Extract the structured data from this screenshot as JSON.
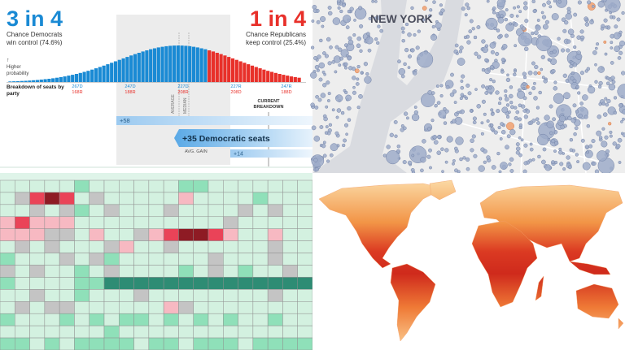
{
  "chart_data": [
    {
      "type": "bar",
      "headline_left": "3 in 4",
      "caption_left": [
        "Chance Democrats",
        "win control (74.6%)"
      ],
      "headline_right": "1 in 4",
      "caption_right": [
        "Chance Republicans",
        "keep control (25.4%)"
      ],
      "y_label": [
        "↑",
        "Higher",
        "probability"
      ],
      "x_label": [
        "Breakdown of seats by",
        "party"
      ],
      "seat_labels": [
        [
          "267D",
          "168R"
        ],
        [
          "247D",
          "188R"
        ],
        [
          "227D",
          "208R"
        ],
        [
          "227R",
          "208D"
        ],
        [
          "247R",
          "188D"
        ]
      ],
      "markers": [
        "AVERAGE",
        "MEDIAN",
        [
          "CURRENT",
          "BREAKDOWN"
        ]
      ],
      "gains": [
        "+58",
        "+35 Democratic seats",
        "AVG. GAIN",
        "+14"
      ],
      "ylim": [
        0,
        4.5
      ],
      "series": [
        {
          "color": "#1a8ad4",
          "values": [
            0.07,
            0.09,
            0.11,
            0.13,
            0.15,
            0.18,
            0.22,
            0.25,
            0.3,
            0.35,
            0.4,
            0.46,
            0.53,
            0.61,
            0.69,
            0.79,
            0.89,
            1.0,
            1.12,
            1.25,
            1.38,
            1.53,
            1.69,
            1.85,
            2.02,
            2.19,
            2.37,
            2.55,
            2.73,
            2.91,
            3.09,
            3.27,
            3.44,
            3.6,
            3.76,
            3.9,
            4.04,
            4.15,
            4.26,
            4.34,
            4.41,
            4.46,
            4.49,
            4.5,
            4.49,
            4.46,
            4.41,
            4.34,
            4.26,
            4.15,
            4.04,
            null,
            null,
            null,
            null,
            null,
            null,
            null,
            null,
            null,
            null,
            null,
            null,
            null,
            null,
            null,
            null,
            null,
            null,
            null,
            null,
            null,
            null,
            null,
            null
          ]
        },
        {
          "color": "#e8302a",
          "values": [
            null,
            null,
            null,
            null,
            null,
            null,
            null,
            null,
            null,
            null,
            null,
            null,
            null,
            null,
            null,
            null,
            null,
            null,
            null,
            null,
            null,
            null,
            null,
            null,
            null,
            null,
            null,
            null,
            null,
            null,
            null,
            null,
            null,
            null,
            null,
            null,
            null,
            null,
            null,
            null,
            null,
            null,
            null,
            null,
            null,
            null,
            null,
            null,
            null,
            null,
            null,
            3.9,
            3.76,
            3.6,
            3.44,
            3.27,
            3.09,
            2.91,
            2.73,
            2.55,
            2.37,
            2.19,
            2.02,
            1.85,
            1.69,
            1.53,
            1.38,
            1.25,
            1.12,
            1.0,
            0.89,
            0.79,
            0.69,
            0.61,
            0.53
          ]
        }
      ]
    },
    {
      "type": "heatmap",
      "palette": [
        "#8e1b24",
        "#ea4358",
        "#f7b9c2",
        "#ffffff",
        "#d3f1e0",
        "#8fe0b9",
        "#2e8c74"
      ],
      "null_color": "#c4c4c4",
      "values": [
        [
          1,
          1,
          1,
          1,
          1,
          2,
          1,
          1,
          1,
          1,
          1,
          1,
          2,
          2,
          1,
          1,
          1,
          1,
          1,
          1,
          1
        ],
        [
          1,
          null,
          -2,
          -3,
          -2,
          1,
          null,
          1,
          1,
          1,
          1,
          1,
          -1,
          1,
          1,
          1,
          1,
          2,
          1,
          1,
          1
        ],
        [
          1,
          1,
          null,
          1,
          null,
          2,
          1,
          null,
          1,
          1,
          1,
          null,
          1,
          1,
          1,
          1,
          null,
          1,
          null,
          1,
          1
        ],
        [
          -1,
          -2,
          -1,
          -1,
          -1,
          1,
          1,
          1,
          1,
          1,
          1,
          1,
          1,
          1,
          1,
          null,
          1,
          1,
          1,
          1,
          1
        ],
        [
          -1,
          -1,
          -1,
          null,
          null,
          1,
          -1,
          1,
          1,
          null,
          -1,
          -2,
          -3,
          -3,
          -2,
          -1,
          1,
          1,
          -1,
          1,
          1
        ],
        [
          1,
          null,
          1,
          null,
          1,
          1,
          1,
          null,
          -1,
          1,
          1,
          null,
          1,
          1,
          1,
          1,
          1,
          1,
          null,
          1,
          1
        ],
        [
          2,
          1,
          1,
          1,
          null,
          1,
          null,
          2,
          1,
          1,
          1,
          1,
          1,
          1,
          null,
          1,
          1,
          1,
          null,
          1,
          1
        ],
        [
          null,
          1,
          null,
          1,
          1,
          2,
          1,
          null,
          1,
          1,
          1,
          1,
          2,
          1,
          null,
          1,
          2,
          1,
          1,
          null,
          1
        ],
        [
          2,
          1,
          1,
          1,
          1,
          2,
          2,
          3,
          3,
          3,
          3,
          3,
          3,
          3,
          3,
          3,
          3,
          3,
          3,
          3,
          3
        ],
        [
          1,
          1,
          null,
          1,
          1,
          2,
          1,
          1,
          1,
          null,
          1,
          1,
          1,
          1,
          1,
          1,
          1,
          1,
          null,
          1,
          1
        ],
        [
          1,
          null,
          1,
          null,
          null,
          1,
          1,
          1,
          1,
          1,
          1,
          -1,
          null,
          1,
          1,
          1,
          1,
          1,
          1,
          1,
          1
        ],
        [
          2,
          1,
          1,
          1,
          2,
          1,
          2,
          1,
          2,
          2,
          1,
          2,
          1,
          2,
          1,
          2,
          1,
          1,
          2,
          1,
          1
        ],
        [
          1,
          1,
          1,
          1,
          1,
          1,
          1,
          2,
          1,
          1,
          1,
          1,
          1,
          1,
          1,
          1,
          1,
          1,
          1,
          1,
          1
        ],
        [
          2,
          2,
          1,
          2,
          1,
          2,
          2,
          2,
          2,
          1,
          2,
          2,
          1,
          2,
          2,
          2,
          1,
          2,
          2,
          2,
          2
        ]
      ]
    }
  ],
  "map": {
    "label": "NEW YORK"
  }
}
